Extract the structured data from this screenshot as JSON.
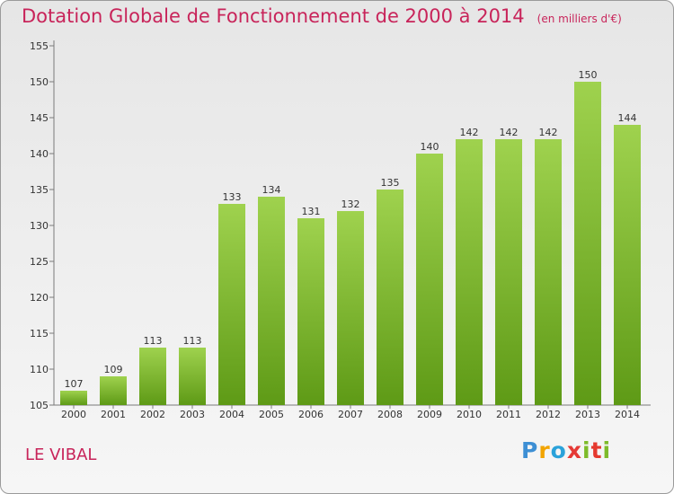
{
  "title": "Dotation Globale de Fonctionnement de 2000 à 2014",
  "unit_note": "(en milliers d'€)",
  "place": "LE VIBAL",
  "brand": {
    "letters": [
      "P",
      "r",
      "o",
      "x",
      "i",
      "t",
      "i"
    ],
    "colors": [
      "#3d8fd4",
      "#f2a400",
      "#2aa2da",
      "#e53935",
      "#7dbb2a",
      "#e5392f",
      "#7dbb2a"
    ]
  },
  "colors": {
    "bar_light": "#9fd24e",
    "bar_dark": "#5e9a16",
    "title": "#c8245a"
  },
  "chart_data": {
    "type": "bar",
    "categories": [
      "2000",
      "2001",
      "2002",
      "2003",
      "2004",
      "2005",
      "2006",
      "2007",
      "2008",
      "2009",
      "2010",
      "2011",
      "2012",
      "2013",
      "2014"
    ],
    "values": [
      107,
      109,
      113,
      113,
      133,
      134,
      131,
      132,
      135,
      140,
      142,
      142,
      142,
      150,
      144
    ],
    "ylim": [
      105,
      155
    ],
    "yticks": [
      105,
      110,
      115,
      120,
      125,
      130,
      135,
      140,
      145,
      150,
      155
    ],
    "grid": false
  }
}
